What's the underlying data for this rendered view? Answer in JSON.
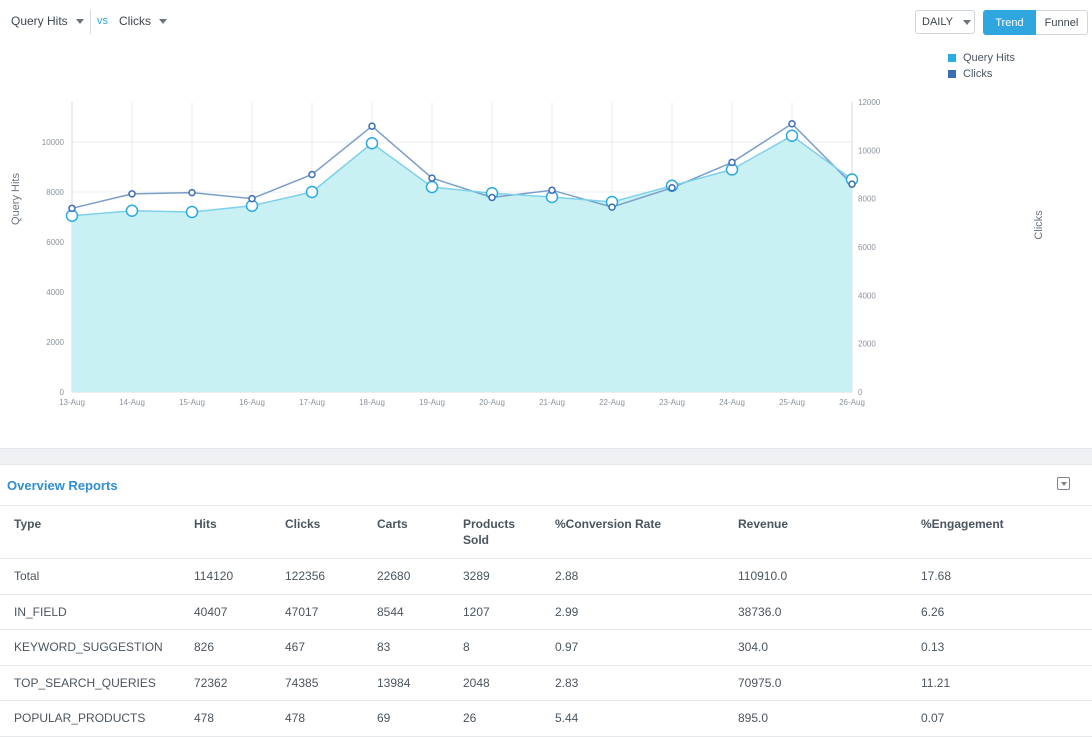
{
  "toolbar": {
    "metric_a": "Query Hits",
    "vs_label": "vs",
    "metric_b": "Clicks",
    "interval": "DAILY",
    "view_trend": "Trend",
    "view_funnel": "Funnel"
  },
  "colors": {
    "accent": "#2fa6e0",
    "query_hits": "#29aae1",
    "clicks": "#3a6db5",
    "area_fill": "#c9f1f4"
  },
  "chart_data": {
    "type": "line",
    "x": [
      "13-Aug",
      "14-Aug",
      "15-Aug",
      "16-Aug",
      "17-Aug",
      "18-Aug",
      "19-Aug",
      "20-Aug",
      "21-Aug",
      "22-Aug",
      "23-Aug",
      "24-Aug",
      "25-Aug",
      "26-Aug"
    ],
    "series": [
      {
        "name": "Query Hits",
        "axis": "left",
        "fill": "area",
        "values": [
          7050,
          7250,
          7200,
          7450,
          8000,
          9950,
          8200,
          7950,
          7800,
          7600,
          8250,
          8900,
          10250,
          8500
        ]
      },
      {
        "name": "Clicks",
        "axis": "right",
        "values": [
          7600,
          8200,
          8250,
          8000,
          9000,
          11000,
          8850,
          8050,
          8350,
          7650,
          8450,
          9500,
          11100,
          8600
        ]
      }
    ],
    "ylabel": "Query Hits",
    "y2label": "Clicks",
    "ylim": [
      0,
      11600
    ],
    "y2lim": [
      0,
      12000
    ],
    "yticks": [
      "0",
      "2000",
      "4000",
      "6000",
      "8000",
      "10000"
    ],
    "y2ticks": [
      "0",
      "2000",
      "4000",
      "6000",
      "8000",
      "10000",
      "12000"
    ],
    "grid": true,
    "legend": "top-right"
  },
  "reports": {
    "title": "Overview Reports",
    "columns": [
      "Type",
      "Hits",
      "Clicks",
      "Carts",
      "Products Sold",
      "%Conversion Rate",
      "Revenue",
      "%Engagement"
    ],
    "rows": [
      [
        "Total",
        "114120",
        "122356",
        "22680",
        "3289",
        "2.88",
        "110910.0",
        "17.68"
      ],
      [
        "IN_FIELD",
        "40407",
        "47017",
        "8544",
        "1207",
        "2.99",
        "38736.0",
        "6.26"
      ],
      [
        "KEYWORD_SUGGESTION",
        "826",
        "467",
        "83",
        "8",
        "0.97",
        "304.0",
        "0.13"
      ],
      [
        "TOP_SEARCH_QUERIES",
        "72362",
        "74385",
        "13984",
        "2048",
        "2.83",
        "70975.0",
        "11.21"
      ],
      [
        "POPULAR_PRODUCTS",
        "478",
        "478",
        "69",
        "26",
        "5.44",
        "895.0",
        "0.07"
      ]
    ]
  }
}
